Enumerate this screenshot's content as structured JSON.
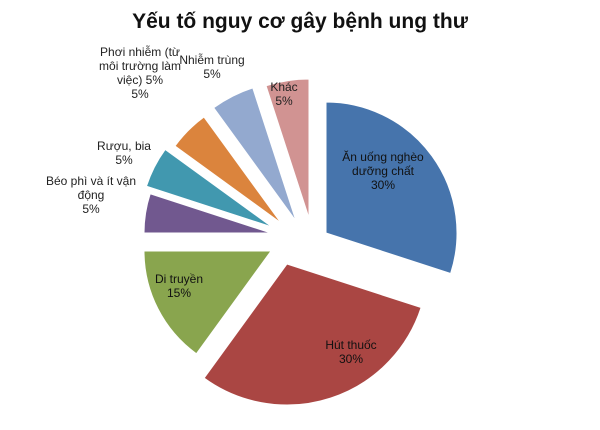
{
  "chart_data": {
    "type": "pie",
    "title": "Yếu tố nguy cơ gây bệnh ung thư",
    "slices": [
      {
        "label": [
          "Ăn uống nghèo",
          "dưỡng chất"
        ],
        "value": 30,
        "value_text": "30%",
        "color": "#4674AC",
        "label_inside": true
      },
      {
        "label": [
          "Hút thuốc"
        ],
        "value": 30,
        "value_text": "30%",
        "color": "#AA4643",
        "label_inside": true
      },
      {
        "label": [
          "Di truyền"
        ],
        "value": 15,
        "value_text": "15%",
        "color": "#89A54E",
        "label_inside": true
      },
      {
        "label": [
          "Béo phì và ít vận",
          "động"
        ],
        "value": 5,
        "value_text": "5%",
        "color": "#71588F",
        "label_inside": false
      },
      {
        "label": [
          "Rượu, bia"
        ],
        "value": 5,
        "value_text": "5%",
        "color": "#4198AF",
        "label_inside": false
      },
      {
        "label": [
          "Phơi nhiễm (từ",
          "môi trường làm",
          "việc) 5%"
        ],
        "value": 5,
        "value_text": "5%",
        "color": "#DB843D",
        "label_inside": false
      },
      {
        "label": [
          "Nhiễm trùng"
        ],
        "value": 5,
        "value_text": "5%",
        "color": "#93A9CF",
        "label_inside": false
      },
      {
        "label": [
          "Khác"
        ],
        "value": 5,
        "value_text": "5%",
        "color": "#D19392",
        "label_inside": false
      }
    ]
  }
}
